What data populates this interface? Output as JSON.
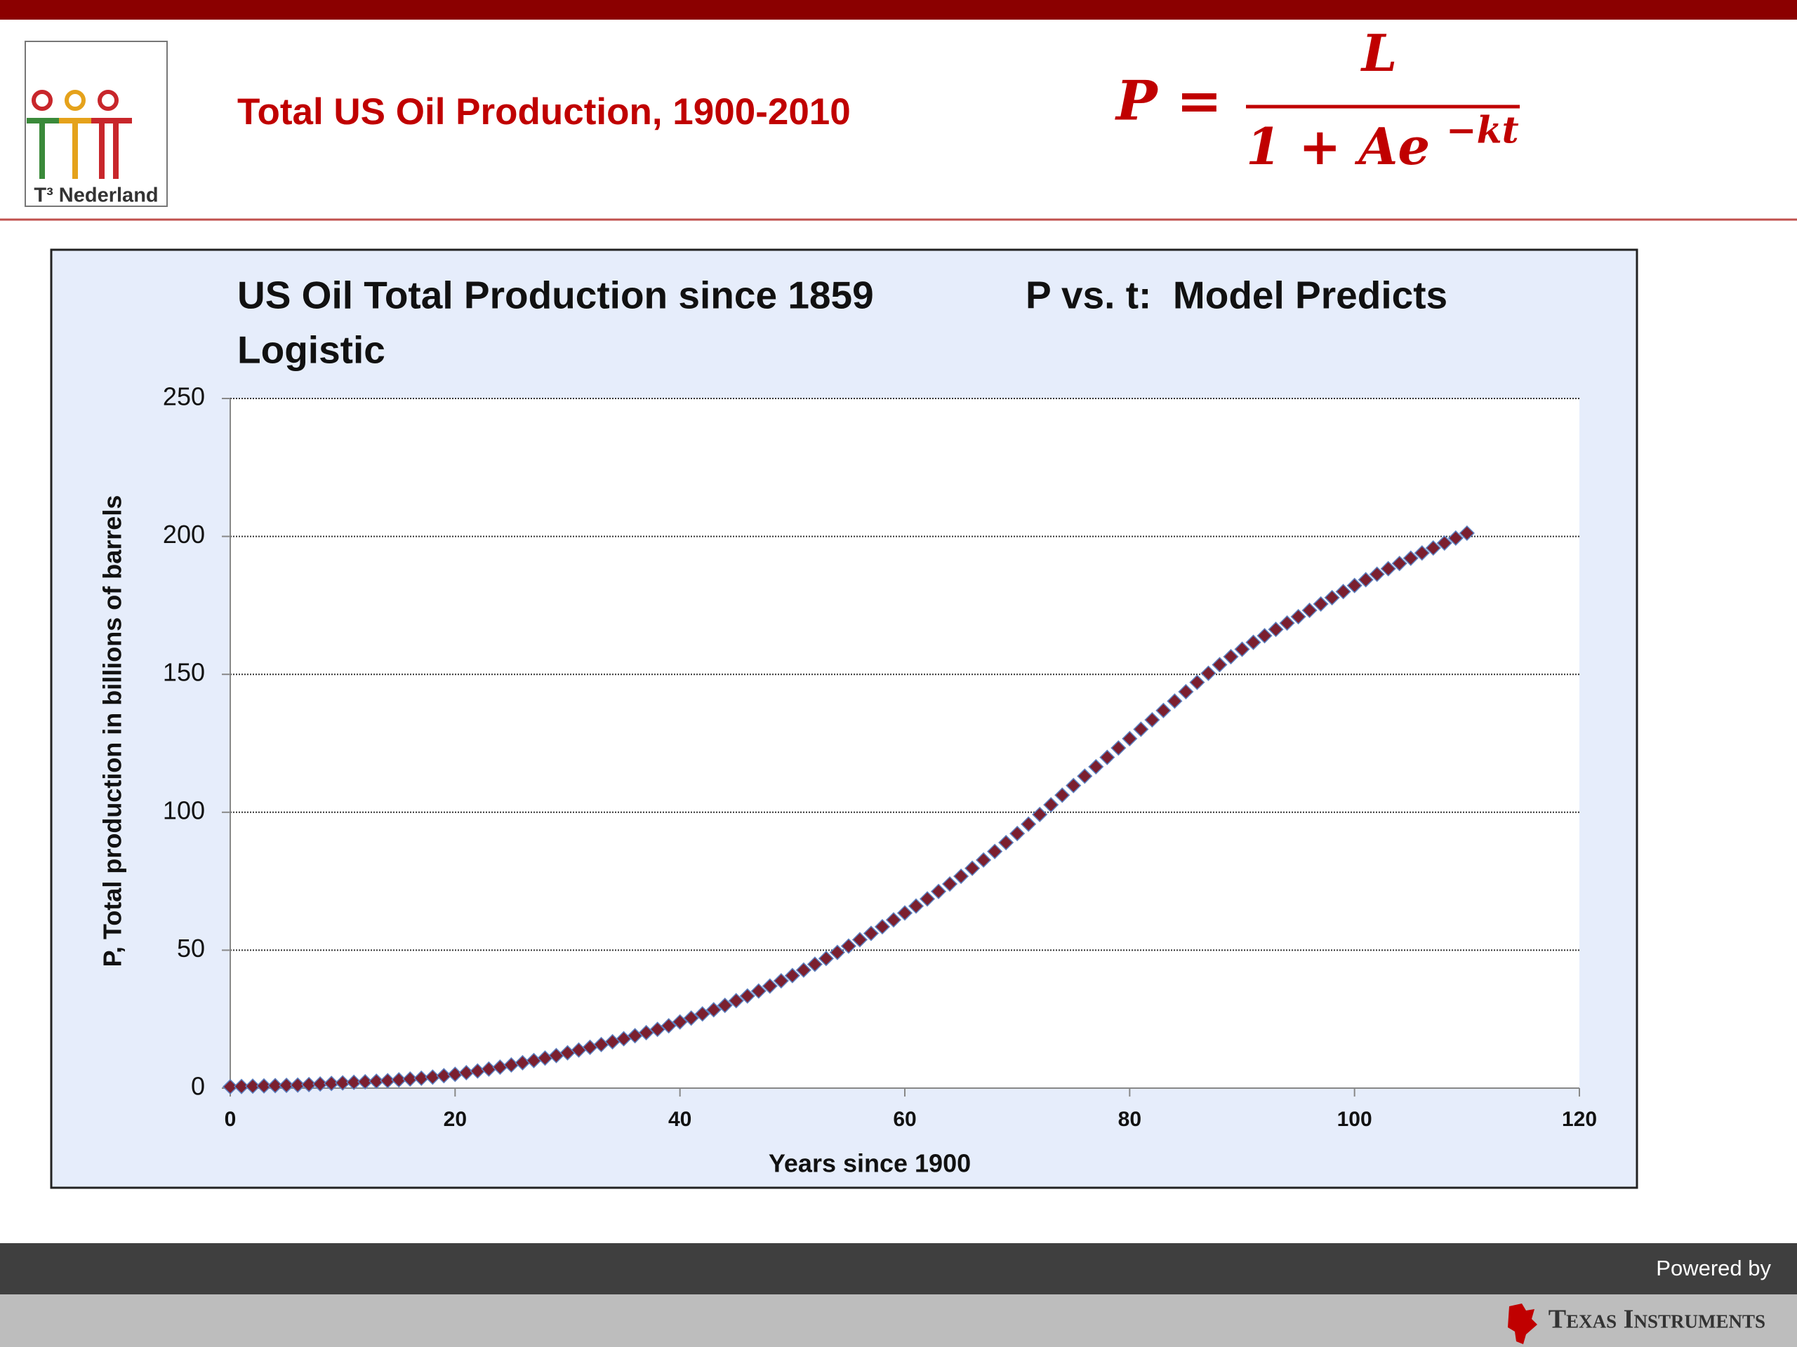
{
  "header": {
    "title": "Total US Oil Production, 1900-2010",
    "logo_text": "T³ Nederland",
    "formula": {
      "lhs": "P =",
      "numerator": "L",
      "denominator": "1 + Ae",
      "exponent": "−kt"
    }
  },
  "chart_data": {
    "type": "scatter",
    "title": "US Oil Total Production since 1859",
    "subtitle": "Logistic",
    "annotation": "P vs. t:  Model Predicts",
    "x_label": "Years since 1900",
    "y_label": "P, Total production in billions of barrels",
    "color": "#7b1f2f",
    "x": [
      0,
      1,
      2,
      3,
      4,
      5,
      6,
      7,
      8,
      9,
      10,
      11,
      12,
      13,
      14,
      15,
      16,
      17,
      18,
      19,
      20,
      21,
      22,
      23,
      24,
      25,
      26,
      27,
      28,
      29,
      30,
      31,
      32,
      33,
      34,
      35,
      36,
      37,
      38,
      39,
      40,
      41,
      42,
      43,
      44,
      45,
      46,
      47,
      48,
      49,
      50,
      51,
      52,
      53,
      54,
      55,
      56,
      57,
      58,
      59,
      60,
      61,
      62,
      63,
      64,
      65,
      66,
      67,
      68,
      69,
      70,
      71,
      72,
      73,
      74,
      75,
      76,
      77,
      78,
      79,
      80,
      81,
      82,
      83,
      84,
      85,
      86,
      87,
      88,
      89,
      90,
      91,
      92,
      93,
      94,
      95,
      96,
      97,
      98,
      99,
      100,
      101,
      102,
      103,
      104,
      105,
      106,
      107,
      108,
      109,
      110
    ],
    "values": [
      0.5,
      0.6,
      0.7,
      0.8,
      0.9,
      1.0,
      1.1,
      1.3,
      1.5,
      1.7,
      1.9,
      2.1,
      2.3,
      2.5,
      2.7,
      3.0,
      3.3,
      3.6,
      4.0,
      4.5,
      5.0,
      5.6,
      6.2,
      6.9,
      7.6,
      8.4,
      9.2,
      10.0,
      10.9,
      11.8,
      12.8,
      13.8,
      14.8,
      15.8,
      16.8,
      17.9,
      19.0,
      20.1,
      21.3,
      22.6,
      24.0,
      25.4,
      26.9,
      28.4,
      30.0,
      31.7,
      33.4,
      35.2,
      37.0,
      38.9,
      40.8,
      42.8,
      44.9,
      47.0,
      49.2,
      51.5,
      53.8,
      56.1,
      58.5,
      61.0,
      63.5,
      66.0,
      68.6,
      71.3,
      74.0,
      76.8,
      79.7,
      82.7,
      85.8,
      89.0,
      92.3,
      95.7,
      99.2,
      102.7,
      106.2,
      109.7,
      113.1,
      116.5,
      119.9,
      123.3,
      126.7,
      130.1,
      133.5,
      136.9,
      140.3,
      143.7,
      147.1,
      150.4,
      153.5,
      156.4,
      159.1,
      161.6,
      164.0,
      166.3,
      168.6,
      170.9,
      173.2,
      175.5,
      177.8,
      180.0,
      182.2,
      184.3,
      186.3,
      188.3,
      190.2,
      192.1,
      194.0,
      195.8,
      197.6,
      199.4,
      201.2
    ],
    "xlim": [
      0,
      120
    ],
    "xticks": [
      0,
      20,
      40,
      60,
      80,
      100,
      120
    ],
    "ylim": [
      0,
      250
    ],
    "yticks": [
      0,
      50,
      100,
      150,
      200,
      250
    ],
    "grid": true
  },
  "footer": {
    "powered_by": "Powered by",
    "brand": "Texas Instruments"
  }
}
